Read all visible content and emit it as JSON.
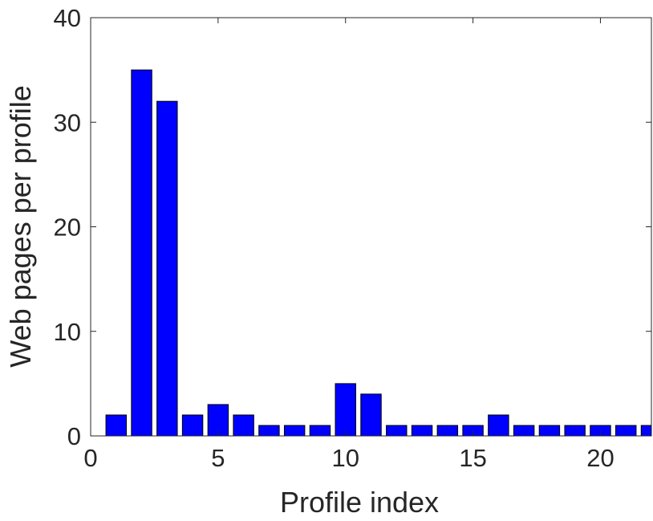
{
  "chart_data": {
    "type": "bar",
    "title": "",
    "xlabel": "Profile index",
    "ylabel": "Web pages per profile",
    "x": [
      1,
      2,
      3,
      4,
      5,
      6,
      7,
      8,
      9,
      10,
      11,
      12,
      13,
      14,
      15,
      16,
      17,
      18,
      19,
      20,
      21,
      22
    ],
    "values": [
      2,
      35,
      32,
      2,
      3,
      2,
      1,
      1,
      1,
      5,
      4,
      1,
      1,
      1,
      1,
      2,
      1,
      1,
      1,
      1,
      1,
      1
    ],
    "xlim": [
      0,
      22
    ],
    "ylim": [
      0,
      40
    ],
    "xticks": [
      0,
      5,
      10,
      15,
      20
    ],
    "yticks": [
      0,
      10,
      20,
      30,
      40
    ],
    "grid": false,
    "bar_color": "#0000ff",
    "bar_edge_color": "#000000"
  }
}
